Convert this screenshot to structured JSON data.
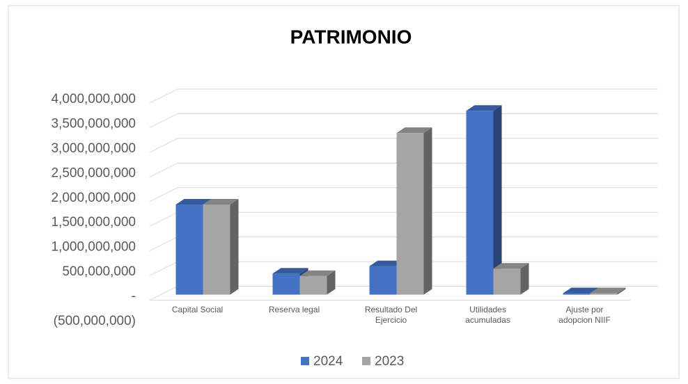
{
  "chart_data": {
    "type": "bar3d",
    "title": "PATRIMONIO",
    "categories": [
      "Capital Social",
      "Reserva legal",
      "Resultado Del Ejercicio",
      "Utilidades acumuladas",
      "Ajuste por adopcion NIIF"
    ],
    "series": [
      {
        "name": "2024",
        "color": "#4472c4",
        "values": [
          1800000000,
          400000000,
          550000000,
          3700000000,
          0
        ]
      },
      {
        "name": "2023",
        "color": "#a5a5a5",
        "values": [
          1800000000,
          350000000,
          3250000000,
          500000000,
          0
        ]
      }
    ],
    "ylim": [
      -500000000,
      4000000000
    ],
    "yticks": [
      {
        "value": -500000000,
        "label": "(500,000,000)"
      },
      {
        "value": 0,
        "label": "-"
      },
      {
        "value": 500000000,
        "label": "500,000,000"
      },
      {
        "value": 1000000000,
        "label": "1,000,000,000"
      },
      {
        "value": 1500000000,
        "label": "1,500,000,000"
      },
      {
        "value": 2000000000,
        "label": "2,000,000,000"
      },
      {
        "value": 2500000000,
        "label": "2,500,000,000"
      },
      {
        "value": 3000000000,
        "label": "3,000,000,000"
      },
      {
        "value": 3500000000,
        "label": "3,500,000,000"
      },
      {
        "value": 4000000000,
        "label": "4,000,000,000"
      }
    ],
    "grid": true,
    "legend": "bottom"
  }
}
